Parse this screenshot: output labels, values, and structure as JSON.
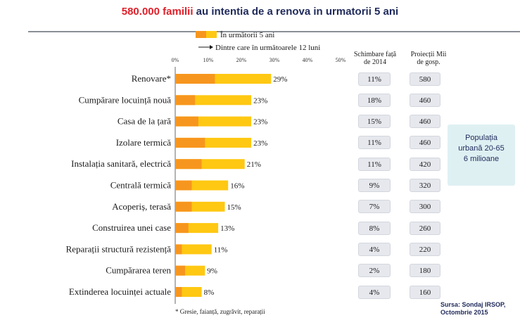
{
  "title": {
    "highlight": "580.000 familii",
    "rest": "au intentia de a renova in urmatorii 5 ani"
  },
  "legend": {
    "series1": "În următorii 5 ani",
    "series2": "Dintre care în următoarele 12 luni"
  },
  "colors": {
    "five_years": "#ffc812",
    "twelve_months": "#f7961e",
    "title_red": "#e0202a",
    "navy": "#1f2a5a"
  },
  "columns": {
    "change_header": "Schimbare față de 2014",
    "projection_header": "Proiecții Mii de gosp."
  },
  "population_box": {
    "line1": "Populația",
    "line2": "urbană 20-65",
    "line3": "6 milioane"
  },
  "footnote": "* Gresie, faianță, zugrăvit, reparații",
  "source": {
    "line1": "Sursa: Sondaj IRSOP,",
    "line2": "Octombrie 2015"
  },
  "chart_data": {
    "type": "bar",
    "orientation": "horizontal",
    "stacked": "overlay",
    "xlim": [
      0,
      50
    ],
    "ticks": [
      "0%",
      "10%",
      "20%",
      "30%",
      "40%",
      "50%"
    ],
    "tick_values": [
      0,
      10,
      20,
      30,
      40,
      50
    ],
    "categories": [
      "Renovare*",
      "Cumpărare locuință nouă",
      "Casa de la țară",
      "Izolare termică",
      "Instalația sanitară, electrică",
      "Centrală termică",
      "Acoperiș, terasă",
      "Construirea unei case",
      "Reparații structură rezistență",
      "Cumpărarea teren",
      "Extinderea locuinței actuale"
    ],
    "series": [
      {
        "name": "În următorii 5 ani",
        "values": [
          29,
          23,
          23,
          23,
          21,
          16,
          15,
          13,
          11,
          9,
          8
        ]
      },
      {
        "name": "Dintre care în următoarele 12 luni",
        "values": [
          12,
          6,
          7,
          9,
          8,
          5,
          5,
          4,
          2,
          3,
          2
        ]
      }
    ],
    "value_labels": [
      "29%",
      "23%",
      "23%",
      "23%",
      "21%",
      "16%",
      "15%",
      "13%",
      "11%",
      "9%",
      "8%"
    ],
    "change_vs_2014": [
      "11%",
      "18%",
      "15%",
      "11%",
      "11%",
      "9%",
      "7%",
      "8%",
      "4%",
      "2%",
      "4%"
    ],
    "projection_thousands": [
      "580",
      "460",
      "460",
      "460",
      "420",
      "320",
      "300",
      "260",
      "220",
      "180",
      "160"
    ]
  }
}
